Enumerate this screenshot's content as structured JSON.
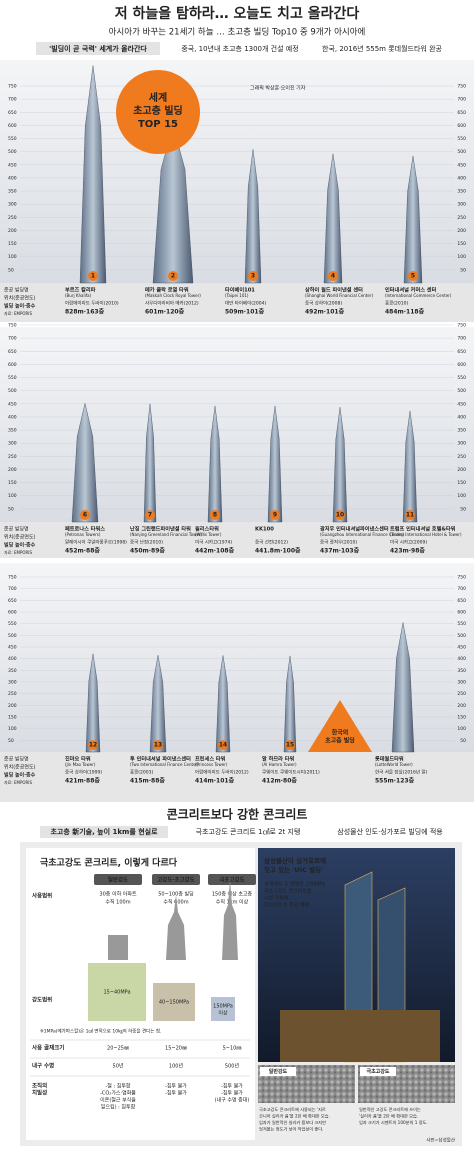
{
  "header": {
    "title": "저 하늘을 탐하라… 오늘도 치고 올라간다",
    "subtitle": "아시아가 바꾸는 21세기 하늘 … 초고층 빌딩 Top10 중 9개가 아시아에",
    "tag": "'빌딩이 곧 국력' 세계가 올라간다",
    "point1": "중국, 10년내 초고층 1300개 건설 예정",
    "point2": "한국, 2016년 555m 롯데월드타워 완공"
  },
  "badge": [
    "세계",
    "초고층 빌딩",
    "TOP 15"
  ],
  "credit": "그래픽 박상훈·오이진 기자",
  "legend": [
    "준공 빌딩명",
    "위치(준공연도)",
    "빌딩 높이·층수",
    "자료: EMPORIS"
  ],
  "axis_ticks": [
    50,
    100,
    150,
    200,
    250,
    300,
    350,
    400,
    450,
    500,
    550,
    600,
    650,
    700,
    750
  ],
  "korea_label": [
    "한국의",
    "초고층 빌딩"
  ],
  "panels": [
    {
      "buildings": [
        {
          "rank": 1,
          "name": "부르즈 칼리파",
          "name_en": "(Burj Khalifa)",
          "location": "아랍에미리트 두바이(2010)",
          "height": 828,
          "stats": "828m·163층"
        },
        {
          "rank": 2,
          "name": "메카 클락 로열 타워",
          "name_en": "(Makkah Clock Royal Tower)",
          "location": "사우디아라비아 메카(2012)",
          "height": 601,
          "stats": "601m·120층"
        },
        {
          "rank": 3,
          "name": "타이베이101",
          "name_en": "(Taipei 101)",
          "location": "대만 타이베이(2004)",
          "height": 509,
          "stats": "509m·101층"
        },
        {
          "rank": 4,
          "name": "상하이 월드 파이낸셜 센터",
          "name_en": "(Shanghai World Financial Center)",
          "location": "중국 상하이(2008)",
          "height": 492,
          "stats": "492m·101층"
        },
        {
          "rank": 5,
          "name": "인터내셔널 커머스 센터",
          "name_en": "(International Commerce Center)",
          "location": "홍콩(2010)",
          "height": 484,
          "stats": "484m·118층"
        }
      ]
    },
    {
      "buildings": [
        {
          "rank": 6,
          "name": "페트로나스 타워스",
          "name_en": "(Petronas Towers)",
          "location": "말레이시아 쿠알라룸푸르(1998)",
          "height": 452,
          "stats": "452m·88층"
        },
        {
          "rank": 7,
          "name": "난징 그린랜드파이낸셜 타워",
          "name_en": "(Nanjing Greenland Financial Tower)",
          "location": "중국 난징(2010)",
          "height": 450,
          "stats": "450m·89층"
        },
        {
          "rank": 8,
          "name": "윌리스타워",
          "name_en": "(Willis Tower)",
          "location": "미국 시카고(1974)",
          "height": 442,
          "stats": "442m·108층"
        },
        {
          "rank": 9,
          "name": "KK100",
          "name_en": "",
          "location": "중국 선전(2012)",
          "height": 441.8,
          "stats": "441.8m·100층"
        },
        {
          "rank": 10,
          "name": "광저우 인터내셔널파이낸스센터",
          "name_en": "(Guangzhou International Finance Center)",
          "location": "중국 광저우(2010)",
          "height": 437,
          "stats": "437m·103층"
        },
        {
          "rank": 11,
          "name": "트럼프 인터내셔널 호텔&타워",
          "name_en": "(Trump International Hotel & Tower)",
          "location": "미국 시카고(2009)",
          "height": 423,
          "stats": "423m·98층"
        }
      ]
    },
    {
      "buildings": [
        {
          "rank": 12,
          "name": "진마오 타워",
          "name_en": "(Jin Mao Tower)",
          "location": "중국 상하이(1999)",
          "height": 421,
          "stats": "421m·88층"
        },
        {
          "rank": 13,
          "name": "투 인터내셔널 파이낸스센터",
          "name_en": "(Two International Finance Center)",
          "location": "홍콩(2003)",
          "height": 415,
          "stats": "415m·88층"
        },
        {
          "rank": 14,
          "name": "프린세스 타워",
          "name_en": "(Princess Tower)",
          "location": "아랍에미리트 두바이(2012)",
          "height": 414,
          "stats": "414m·101층"
        },
        {
          "rank": 15,
          "name": "알 하므라 타워",
          "name_en": "(Al Hamra Tower)",
          "location": "쿠웨이트 쿠웨이트시티(2011)",
          "height": 412,
          "stats": "412m·80층"
        },
        {
          "name": "롯데월드타워",
          "name_en": "(LotteWorld Tower)",
          "location": "한국 서울 잠실(2016년 말)",
          "height": 555,
          "stats": "555m·123층"
        }
      ]
    }
  ],
  "concrete": {
    "title": "콘크리트보다 강한 콘크리트",
    "tag": "초고층 新기술, 높이 1km를 현실로",
    "point1": "극초고강도 콘크리트 1㎠로 2t 지탱",
    "point2": "삼성물산 인도·싱가포르 빌딩에 적용",
    "table_title": "극초고강도 콘크리트, 이렇게 다르다",
    "columns": [
      "일반강도",
      "고강도·초고강도",
      "극초고강도"
    ],
    "usage": {
      "label": [
        "사용범위"
      ],
      "cells": [
        [
          "30층 이하 아파트",
          "수직 100m"
        ],
        [
          "50~100층 빌딩",
          "수직 600m"
        ],
        [
          "150층 이상 초고층",
          "수직 1km 이상"
        ]
      ]
    },
    "strength": {
      "label": [
        "강도범위"
      ],
      "cells": [
        [
          "15~40MPa"
        ],
        [
          "40~150MPa"
        ],
        [
          "150MPa",
          "이상"
        ]
      ]
    },
    "note": "※1MPa(메가파스칼)은 1㎠ 면적으로 10㎏의 하중을 견디는 힘.",
    "aggregate": {
      "label": [
        "사용 골재크기"
      ],
      "cells": [
        [
          "20~25㎜"
        ],
        [
          "15~20㎜"
        ],
        [
          "5~10㎜"
        ]
      ]
    },
    "life": {
      "label": [
        "내구 수명"
      ],
      "cells": [
        [
          "50년"
        ],
        [
          "100년"
        ],
        [
          "500년"
        ]
      ]
    },
    "density": {
      "label": [
        "조직의",
        "치밀성"
      ],
      "cells": [
        [
          "-철 : 침투함",
          "-CO₂가스·염화물",
          "이온(철근 부식을",
          "일으킴) : 침투함"
        ],
        [
          "-침투 불가",
          "-침투 불가"
        ],
        [
          "-침투 불가",
          "-침투 불가",
          "(내구 수명 증대)"
        ]
      ]
    },
    "photo_caption": [
      "삼성물산이 싱가포르에",
      "짓고 있는 'UIC 빌딩'"
    ],
    "photo_text": [
      "세계에서 두 번째로 200MPa",
      "극초고강도 콘크리트를",
      "시범 적용해,",
      "2017년 초 준공 예정."
    ],
    "samples": [
      {
        "label": "일반강도",
        "text": [
          "극초고강도 콘크리트에 사용되는 '지르",
          "코니아 실리카 퓸'을 2만 배 확대한 모습.",
          "입자가 일반적인 실리카 퓸보다 크지만",
          "엉겨붙는 정도가 낮아 작업성이 좋다."
        ]
      },
      {
        "label": "극초고강도",
        "text": [
          "일반적인 고강도 콘크리트에 쓰이는",
          "'실리카 퓸'을 2만 배 확대한 모습.",
          "입자 크기가 시멘트의 100분의 1 정도."
        ]
      }
    ],
    "credit": "사진=삼성물산"
  }
}
